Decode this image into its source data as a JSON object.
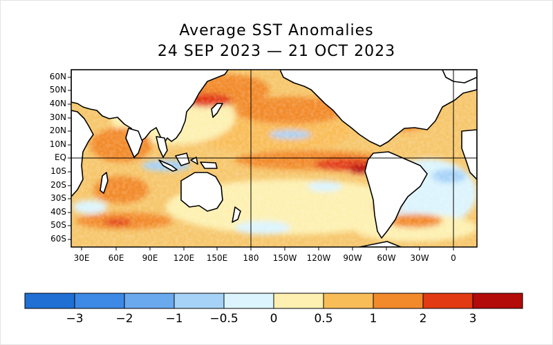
{
  "title": {
    "line1": "Average SST Anomalies",
    "line2": "24 SEP 2023 — 21 OCT 2023"
  },
  "map": {
    "projection": "equirectangular, Pacific-centered (lon 20E to 20E wrap, lat 65S to 65N)",
    "land_color": "#ffffff",
    "grid_lines": [
      "EQ",
      "180",
      "0"
    ],
    "lat_labels": [
      "60N",
      "50N",
      "40N",
      "30N",
      "20N",
      "10N",
      "EQ",
      "10S",
      "20S",
      "30S",
      "40S",
      "50S",
      "60S"
    ],
    "lon_labels": [
      "30E",
      "60E",
      "90E",
      "120E",
      "150E",
      "180",
      "150W",
      "120W",
      "90W",
      "60W",
      "30W",
      "0"
    ]
  },
  "colorbar": {
    "labels": [
      "−3",
      "−2",
      "−1",
      "−0.5",
      "0",
      "0.5",
      "1",
      "2",
      "3"
    ],
    "colors": [
      "#1f6fd4",
      "#3d8ae6",
      "#6aa9ee",
      "#a6d2f8",
      "#dcf4fd",
      "#fdf0b0",
      "#f9bd58",
      "#f28a2c",
      "#e23a12",
      "#b30a0a"
    ]
  }
}
